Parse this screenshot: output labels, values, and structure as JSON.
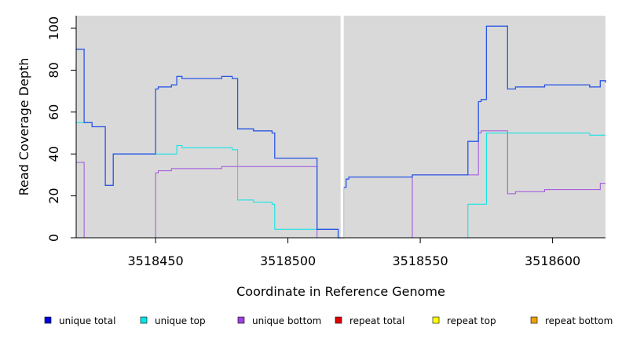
{
  "chart_data": {
    "type": "line",
    "xlabel": "Coordinate in Reference Genome",
    "ylabel": "Read Coverage Depth",
    "xlim": [
      3518420,
      3518620
    ],
    "ylim": [
      0,
      106
    ],
    "x_ticks": [
      3518450,
      3518500,
      3518550,
      3518600
    ],
    "y_ticks": [
      0,
      20,
      40,
      60,
      80,
      100
    ],
    "grid": false,
    "background": "#d9d9d9",
    "gap_x": 3518520.5,
    "legend_position": "bottom",
    "series": [
      {
        "name": "unique total",
        "color": "#0000e0",
        "line_color": "#2a55e6",
        "points": [
          [
            3518420,
            90
          ],
          [
            3518423,
            55
          ],
          [
            3518426,
            53
          ],
          [
            3518431,
            25
          ],
          [
            3518434,
            40
          ],
          [
            3518450,
            71
          ],
          [
            3518451,
            72
          ],
          [
            3518456,
            73
          ],
          [
            3518458,
            77
          ],
          [
            3518460,
            76
          ],
          [
            3518475,
            77
          ],
          [
            3518479,
            76
          ],
          [
            3518481,
            52
          ],
          [
            3518487,
            51
          ],
          [
            3518494,
            50
          ],
          [
            3518495,
            38
          ],
          [
            3518511,
            4
          ],
          [
            3518519,
            0
          ],
          [
            3518521,
            24
          ],
          [
            3518522,
            28
          ],
          [
            3518523,
            29
          ],
          [
            3518547,
            30
          ],
          [
            3518568,
            46
          ],
          [
            3518572,
            65
          ],
          [
            3518573,
            66
          ],
          [
            3518575,
            101
          ],
          [
            3518583,
            71
          ],
          [
            3518586,
            72
          ],
          [
            3518597,
            73
          ],
          [
            3518614,
            72
          ],
          [
            3518618,
            75
          ],
          [
            3518620,
            74
          ]
        ]
      },
      {
        "name": "unique top",
        "color": "#00e5e5",
        "line_color": "#00e5e5",
        "points": [
          [
            3518420,
            55
          ],
          [
            3518423,
            55
          ],
          [
            3518426,
            53
          ],
          [
            3518431,
            25
          ],
          [
            3518434,
            40
          ],
          [
            3518450,
            40
          ],
          [
            3518458,
            44
          ],
          [
            3518460,
            43
          ],
          [
            3518479,
            42
          ],
          [
            3518481,
            18
          ],
          [
            3518487,
            17
          ],
          [
            3518494,
            16
          ],
          [
            3518495,
            4
          ],
          [
            3518511,
            4
          ],
          [
            3518519,
            0
          ],
          [
            3518521,
            0
          ],
          [
            3518568,
            16
          ],
          [
            3518575,
            50
          ],
          [
            3518614,
            49
          ],
          [
            3518620,
            49
          ]
        ]
      },
      {
        "name": "unique bottom",
        "color": "#a040e0",
        "line_color": "#a050e0",
        "points": [
          [
            3518420,
            36
          ],
          [
            3518423,
            0
          ],
          [
            3518450,
            31
          ],
          [
            3518451,
            32
          ],
          [
            3518456,
            33
          ],
          [
            3518475,
            34
          ],
          [
            3518511,
            0
          ],
          [
            3518521,
            0
          ],
          [
            3518547,
            30
          ],
          [
            3518572,
            50
          ],
          [
            3518573,
            51
          ],
          [
            3518583,
            21
          ],
          [
            3518586,
            22
          ],
          [
            3518597,
            23
          ],
          [
            3518618,
            26
          ],
          [
            3518620,
            26
          ]
        ]
      },
      {
        "name": "repeat total",
        "color": "#e00000",
        "line_color": "#e00000",
        "points": [
          [
            3518420,
            0
          ],
          [
            3518620,
            0
          ]
        ]
      },
      {
        "name": "repeat top",
        "color": "#ffff00",
        "line_color": "#ffff00",
        "points": [
          [
            3518420,
            0
          ],
          [
            3518620,
            0
          ]
        ]
      },
      {
        "name": "repeat bottom",
        "color": "#f0a000",
        "line_color": "#f0a000",
        "points": [
          [
            3518420,
            0
          ],
          [
            3518620,
            0
          ]
        ]
      }
    ]
  }
}
